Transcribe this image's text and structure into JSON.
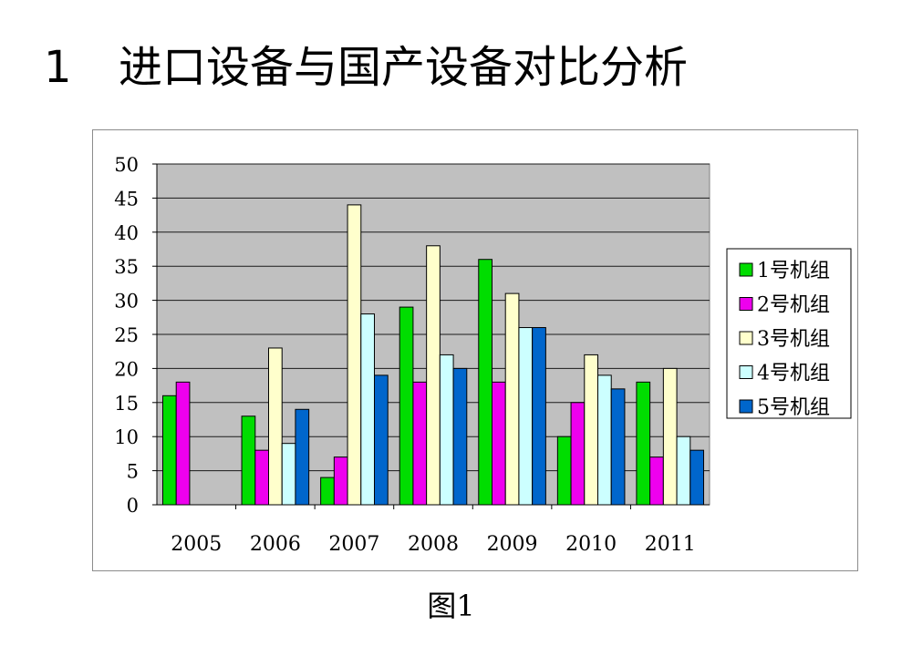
{
  "page": {
    "heading_number": "1",
    "heading_text": "进口设备与国产设备对比分析",
    "caption": "图1"
  },
  "chart_data": {
    "type": "bar",
    "categories": [
      "2005",
      "2006",
      "2007",
      "2008",
      "2009",
      "2010",
      "2011"
    ],
    "series": [
      {
        "name": "1号机组",
        "color": "#00dd00",
        "values": [
          16,
          13,
          4,
          29,
          36,
          10,
          18
        ]
      },
      {
        "name": "2号机组",
        "color": "#ee00ee",
        "values": [
          18,
          8,
          7,
          18,
          18,
          15,
          7
        ]
      },
      {
        "name": "3号机组",
        "color": "#ffffcc",
        "values": [
          null,
          23,
          44,
          38,
          31,
          22,
          20
        ]
      },
      {
        "name": "4号机组",
        "color": "#ccffff",
        "values": [
          null,
          9,
          28,
          22,
          26,
          19,
          10
        ]
      },
      {
        "name": "5号机组",
        "color": "#0066cc",
        "values": [
          null,
          14,
          19,
          20,
          26,
          17,
          8
        ]
      }
    ],
    "ylim": [
      0,
      50
    ],
    "yticks": [
      0,
      5,
      10,
      15,
      20,
      25,
      30,
      35,
      40,
      45,
      50
    ],
    "grid": true,
    "legend": "right",
    "plot_background": "#c0c0c0"
  }
}
